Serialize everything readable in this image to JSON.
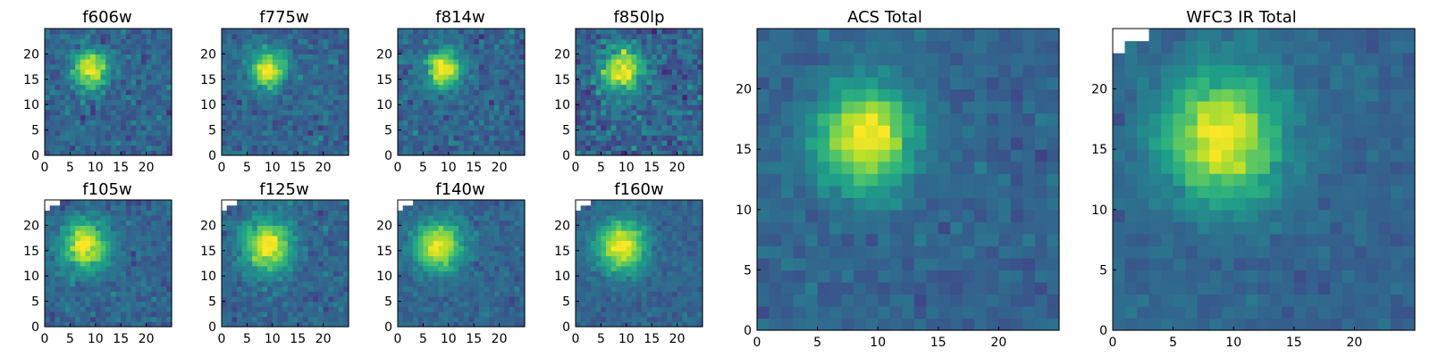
{
  "chart_data": [
    {
      "type": "heatmap",
      "title": "f606w",
      "colormap": "viridis",
      "grid_size": 25,
      "peak": [
        9,
        17
      ],
      "sigma": [
        2.4,
        2.6
      ],
      "noise": 0.55,
      "seed": 3,
      "mask_corner": false,
      "xticks": [
        0,
        5,
        10,
        15,
        20
      ],
      "yticks": [
        0,
        5,
        10,
        15,
        20
      ],
      "xlim": [
        0,
        25
      ],
      "ylim": [
        0,
        25
      ]
    },
    {
      "type": "heatmap",
      "title": "f775w",
      "colormap": "viridis",
      "grid_size": 25,
      "peak": [
        9,
        17
      ],
      "sigma": [
        2.4,
        2.6
      ],
      "noise": 0.5,
      "seed": 7,
      "mask_corner": false,
      "xticks": [
        0,
        5,
        10,
        15,
        20
      ],
      "yticks": [
        0,
        5,
        10,
        15,
        20
      ],
      "xlim": [
        0,
        25
      ],
      "ylim": [
        0,
        25
      ]
    },
    {
      "type": "heatmap",
      "title": "f814w",
      "colormap": "viridis",
      "grid_size": 25,
      "peak": [
        9,
        17
      ],
      "sigma": [
        2.5,
        2.7
      ],
      "noise": 0.55,
      "seed": 11,
      "mask_corner": false,
      "xticks": [
        0,
        5,
        10,
        15,
        20
      ],
      "yticks": [
        0,
        5,
        10,
        15,
        20
      ],
      "xlim": [
        0,
        25
      ],
      "ylim": [
        0,
        25
      ]
    },
    {
      "type": "heatmap",
      "title": "f850lp",
      "colormap": "viridis",
      "grid_size": 25,
      "peak": [
        9,
        17
      ],
      "sigma": [
        2.8,
        3.0
      ],
      "noise": 0.75,
      "seed": 19,
      "mask_corner": false,
      "xticks": [
        0,
        5,
        10,
        15,
        20
      ],
      "yticks": [
        0,
        5,
        10,
        15,
        20
      ],
      "xlim": [
        0,
        25
      ],
      "ylim": [
        0,
        25
      ]
    },
    {
      "type": "heatmap",
      "title": "f105w",
      "colormap": "viridis",
      "grid_size": 25,
      "peak": [
        8,
        16
      ],
      "sigma": [
        3.2,
        3.4
      ],
      "noise": 0.45,
      "seed": 23,
      "mask_corner": true,
      "xticks": [
        0,
        5,
        10,
        15,
        20
      ],
      "yticks": [
        0,
        5,
        10,
        15,
        20
      ],
      "xlim": [
        0,
        25
      ],
      "ylim": [
        0,
        25
      ]
    },
    {
      "type": "heatmap",
      "title": "f125w",
      "colormap": "viridis",
      "grid_size": 25,
      "peak": [
        9,
        16
      ],
      "sigma": [
        3.3,
        3.6
      ],
      "noise": 0.45,
      "seed": 29,
      "mask_corner": true,
      "xticks": [
        0,
        5,
        10,
        15,
        20
      ],
      "yticks": [
        0,
        5,
        10,
        15,
        20
      ],
      "xlim": [
        0,
        25
      ],
      "ylim": [
        0,
        25
      ]
    },
    {
      "type": "heatmap",
      "title": "f140w",
      "colormap": "viridis",
      "grid_size": 25,
      "peak": [
        8,
        16
      ],
      "sigma": [
        3.2,
        3.4
      ],
      "noise": 0.4,
      "seed": 31,
      "mask_corner": true,
      "xticks": [
        0,
        5,
        10,
        15,
        20
      ],
      "yticks": [
        0,
        5,
        10,
        15,
        20
      ],
      "xlim": [
        0,
        25
      ],
      "ylim": [
        0,
        25
      ]
    },
    {
      "type": "heatmap",
      "title": "f160w",
      "colormap": "viridis",
      "grid_size": 25,
      "peak": [
        9,
        16
      ],
      "sigma": [
        3.4,
        3.6
      ],
      "noise": 0.35,
      "seed": 37,
      "mask_corner": true,
      "xticks": [
        0,
        5,
        10,
        15,
        20
      ],
      "yticks": [
        0,
        5,
        10,
        15,
        20
      ],
      "xlim": [
        0,
        25
      ],
      "ylim": [
        0,
        25
      ]
    },
    {
      "type": "heatmap",
      "title": "ACS Total",
      "colormap": "viridis",
      "grid_size": 25,
      "peak": [
        9,
        16
      ],
      "sigma": [
        2.8,
        3.0
      ],
      "noise": 0.35,
      "seed": 41,
      "mask_corner": false,
      "xticks": [
        0,
        5,
        10,
        15,
        20
      ],
      "yticks": [
        0,
        5,
        10,
        15,
        20
      ],
      "xlim": [
        0,
        25
      ],
      "ylim": [
        0,
        25
      ]
    },
    {
      "type": "heatmap",
      "title": "WFC3 IR Total",
      "colormap": "viridis",
      "grid_size": 25,
      "peak": [
        9,
        16
      ],
      "sigma": [
        3.4,
        3.8
      ],
      "noise": 0.3,
      "seed": 43,
      "mask_corner": true,
      "xticks": [
        0,
        5,
        10,
        15,
        20
      ],
      "yticks": [
        0,
        5,
        10,
        15,
        20
      ],
      "xlim": [
        0,
        25
      ],
      "ylim": [
        0,
        25
      ]
    }
  ]
}
